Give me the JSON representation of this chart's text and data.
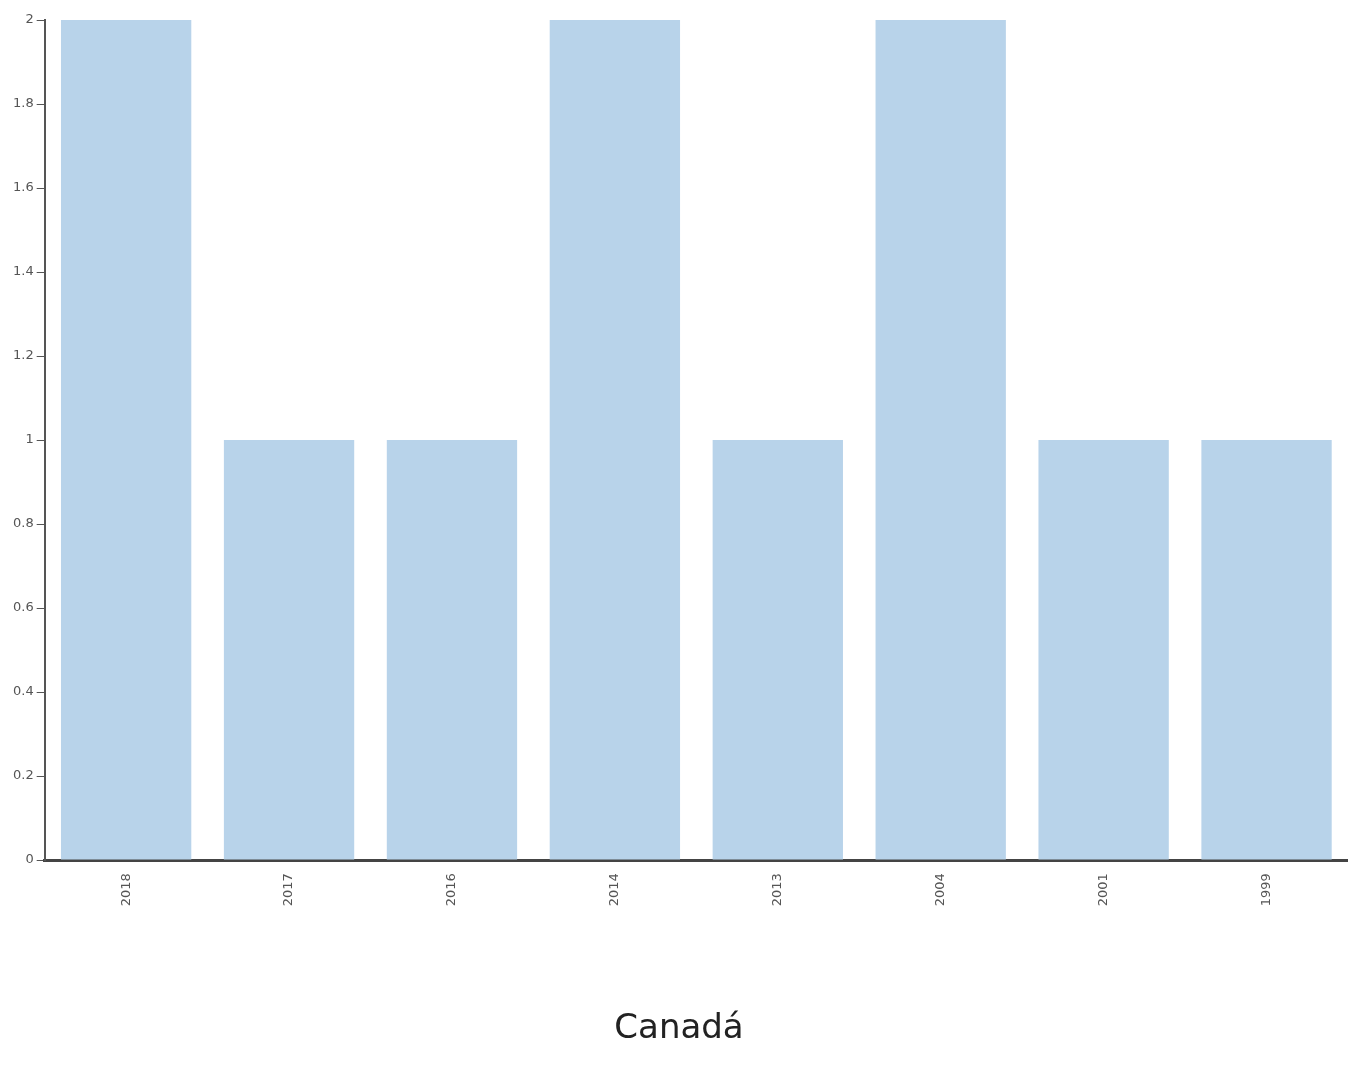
{
  "chart_data": {
    "type": "bar",
    "title": "Canadá",
    "categories": [
      "2018",
      "2017",
      "2016",
      "2014",
      "2013",
      "2004",
      "2001",
      "1999"
    ],
    "values": [
      2,
      1,
      1,
      2,
      1,
      2,
      1,
      1
    ],
    "color": "#b8d3ea",
    "ylim": [
      0,
      2
    ],
    "yticks": [
      0,
      0.2,
      0.4,
      0.6,
      0.8,
      1,
      1.2,
      1.4,
      1.6,
      1.8,
      2
    ],
    "grid": false,
    "legend": false
  }
}
